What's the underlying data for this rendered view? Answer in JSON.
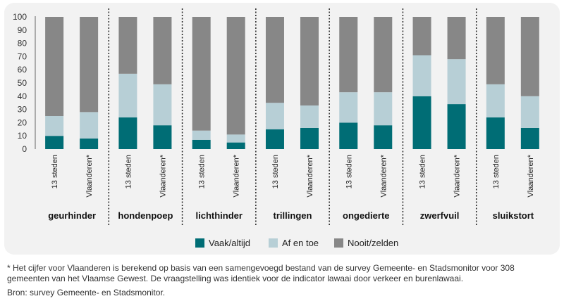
{
  "chart_data": {
    "type": "bar",
    "stacked": true,
    "ylim": [
      0,
      100
    ],
    "yticks": [
      0,
      10,
      20,
      30,
      40,
      50,
      60,
      70,
      80,
      90,
      100
    ],
    "legend_position": "bottom",
    "groups": [
      {
        "name": "geurhinder",
        "bars": [
          {
            "label": "13 steden",
            "values": [
              10,
              15,
              75
            ]
          },
          {
            "label": "Vlaanderen*",
            "values": [
              8,
              20,
              72
            ]
          }
        ]
      },
      {
        "name": "hondenpoep",
        "bars": [
          {
            "label": "13 steden",
            "values": [
              24,
              33,
              43
            ]
          },
          {
            "label": "Vlaanderen*",
            "values": [
              18,
              31,
              51
            ]
          }
        ]
      },
      {
        "name": "lichthinder",
        "bars": [
          {
            "label": "13 steden",
            "values": [
              7,
              7,
              86
            ]
          },
          {
            "label": "Vlaanderen*",
            "values": [
              5,
              6,
              89
            ]
          }
        ]
      },
      {
        "name": "trillingen",
        "bars": [
          {
            "label": "13 steden",
            "values": [
              15,
              20,
              65
            ]
          },
          {
            "label": "Vlaanderen*",
            "values": [
              16,
              17,
              67
            ]
          }
        ]
      },
      {
        "name": "ongedierte",
        "bars": [
          {
            "label": "13 steden",
            "values": [
              20,
              23,
              57
            ]
          },
          {
            "label": "Vlaanderen*",
            "values": [
              18,
              25,
              57
            ]
          }
        ]
      },
      {
        "name": "zwerfvuil",
        "bars": [
          {
            "label": "13 steden",
            "values": [
              40,
              31,
              29
            ]
          },
          {
            "label": "Vlaanderen*",
            "values": [
              34,
              34,
              32
            ]
          }
        ]
      },
      {
        "name": "sluikstort",
        "bars": [
          {
            "label": "13 steden",
            "values": [
              24,
              25,
              51
            ]
          },
          {
            "label": "Vlaanderen*",
            "values": [
              16,
              24,
              60
            ]
          }
        ]
      }
    ],
    "series": [
      {
        "name": "Vaak/altijd",
        "color": "#006d75"
      },
      {
        "name": "Af en toe",
        "color": "#b7cfd6"
      },
      {
        "name": "Nooit/zelden",
        "color": "#878787"
      }
    ]
  },
  "footnote": "* Het cijfer voor Vlaanderen is berekend op basis van een samengevoegd bestand van de survey Gemeente- en Stadsmonitor voor 308 gemeenten van het Vlaamse Gewest. De vraagstelling was identiek voor de indicator lawaai door verkeer en burenlawaai.",
  "source": "Bron: survey Gemeente- en Stadsmonitor."
}
